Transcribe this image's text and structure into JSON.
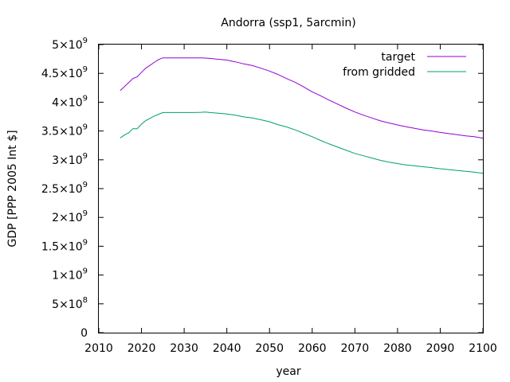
{
  "chart_data": {
    "type": "line",
    "title": "Andorra (ssp1, 5arcmin)",
    "xlabel": "year",
    "ylabel": "GDP [PPP 2005 Int $]",
    "xlim": [
      2010,
      2100
    ],
    "ylim": [
      0,
      5000000000
    ],
    "x_ticks": [
      2010,
      2020,
      2030,
      2040,
      2050,
      2060,
      2070,
      2080,
      2090,
      2100
    ],
    "y_ticks": [
      {
        "value": 0,
        "mantissa": "0",
        "exponent": ""
      },
      {
        "value": 500000000,
        "mantissa": "5×10",
        "exponent": "8"
      },
      {
        "value": 1000000000,
        "mantissa": "1×10",
        "exponent": "9"
      },
      {
        "value": 1500000000,
        "mantissa": "1.5×10",
        "exponent": "9"
      },
      {
        "value": 2000000000,
        "mantissa": "2×10",
        "exponent": "9"
      },
      {
        "value": 2500000000,
        "mantissa": "2.5×10",
        "exponent": "9"
      },
      {
        "value": 3000000000,
        "mantissa": "3×10",
        "exponent": "9"
      },
      {
        "value": 3500000000,
        "mantissa": "3.5×10",
        "exponent": "9"
      },
      {
        "value": 4000000000,
        "mantissa": "4×10",
        "exponent": "9"
      },
      {
        "value": 4500000000,
        "mantissa": "4.5×10",
        "exponent": "9"
      },
      {
        "value": 5000000000,
        "mantissa": "5×10",
        "exponent": "9"
      }
    ],
    "grid": false,
    "legend_position": "top-right",
    "series": [
      {
        "name": "target",
        "color": "#9400d3",
        "x": [
          2015,
          2016,
          2017,
          2018,
          2019,
          2020,
          2021,
          2022,
          2023,
          2024,
          2025,
          2026,
          2028,
          2030,
          2032,
          2034,
          2035,
          2036,
          2038,
          2040,
          2042,
          2044,
          2046,
          2048,
          2050,
          2052,
          2054,
          2056,
          2058,
          2060,
          2062,
          2064,
          2066,
          2068,
          2070,
          2072,
          2074,
          2076,
          2078,
          2080,
          2082,
          2084,
          2086,
          2088,
          2090,
          2092,
          2094,
          2096,
          2098,
          2100
        ],
        "y": [
          4200000000,
          4270000000,
          4340000000,
          4410000000,
          4440000000,
          4520000000,
          4590000000,
          4640000000,
          4690000000,
          4740000000,
          4770000000,
          4770000000,
          4770000000,
          4770000000,
          4770000000,
          4770000000,
          4765000000,
          4760000000,
          4745000000,
          4730000000,
          4700000000,
          4665000000,
          4635000000,
          4590000000,
          4540000000,
          4480000000,
          4410000000,
          4345000000,
          4265000000,
          4180000000,
          4110000000,
          4035000000,
          3965000000,
          3895000000,
          3830000000,
          3775000000,
          3725000000,
          3675000000,
          3640000000,
          3605000000,
          3575000000,
          3545000000,
          3520000000,
          3500000000,
          3475000000,
          3455000000,
          3435000000,
          3415000000,
          3400000000,
          3375000000
        ]
      },
      {
        "name": "from gridded",
        "color": "#009e73",
        "x": [
          2015,
          2016,
          2017,
          2018,
          2019,
          2020,
          2021,
          2022,
          2023,
          2024,
          2025,
          2026,
          2028,
          2030,
          2032,
          2034,
          2035,
          2036,
          2038,
          2040,
          2042,
          2044,
          2046,
          2048,
          2050,
          2052,
          2054,
          2056,
          2058,
          2060,
          2062,
          2064,
          2066,
          2068,
          2070,
          2072,
          2074,
          2076,
          2078,
          2080,
          2082,
          2084,
          2086,
          2088,
          2090,
          2092,
          2094,
          2096,
          2098,
          2100
        ],
        "y": [
          3380000000,
          3430000000,
          3470000000,
          3540000000,
          3540000000,
          3620000000,
          3680000000,
          3720000000,
          3760000000,
          3790000000,
          3820000000,
          3820000000,
          3820000000,
          3820000000,
          3820000000,
          3825000000,
          3830000000,
          3820000000,
          3810000000,
          3795000000,
          3775000000,
          3745000000,
          3725000000,
          3695000000,
          3660000000,
          3610000000,
          3570000000,
          3520000000,
          3460000000,
          3400000000,
          3335000000,
          3275000000,
          3220000000,
          3165000000,
          3110000000,
          3070000000,
          3030000000,
          2990000000,
          2960000000,
          2935000000,
          2910000000,
          2895000000,
          2880000000,
          2865000000,
          2845000000,
          2830000000,
          2815000000,
          2800000000,
          2785000000,
          2765000000
        ]
      }
    ]
  }
}
